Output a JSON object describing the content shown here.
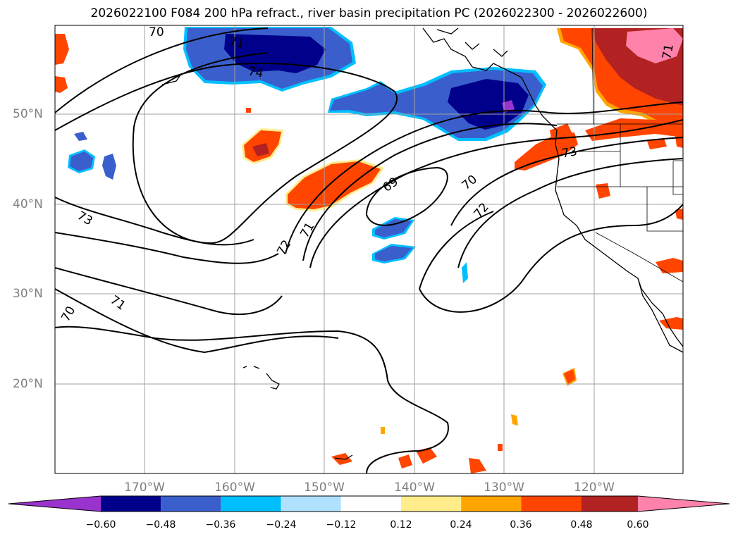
{
  "title": "2026022100 F084 200 hPa refract., river basin precipitation PC (2026022300 - 2026022600)",
  "latitude_labels": [
    "50°N",
    "40°N",
    "30°N",
    "20°N"
  ],
  "longitude_labels": [
    "170°W",
    "160°W",
    "150°W",
    "140°W",
    "130°W",
    "120°W"
  ],
  "contour_labels": [
    "70",
    "71",
    "74",
    "69",
    "70",
    "72",
    "71",
    "72",
    "73",
    "71",
    "70",
    "73",
    "71"
  ],
  "colorbar": {
    "tick_labels": [
      "−0.60",
      "−0.48",
      "−0.36",
      "−0.24",
      "−0.12",
      "0.12",
      "0.24",
      "0.36",
      "0.48",
      "0.60"
    ],
    "colors": [
      "#9a32cd",
      "#00008b",
      "#3a5fcd",
      "#00bfff",
      "#b0e2ff",
      "#ffffff",
      "#ffec8b",
      "#ffa500",
      "#ff4500",
      "#b22222",
      "#ff82ab"
    ]
  }
}
